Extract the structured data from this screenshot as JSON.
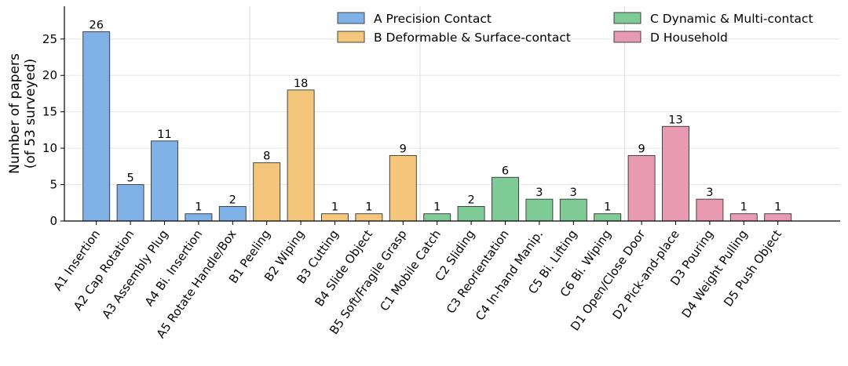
{
  "chart_data": {
    "type": "bar",
    "ylabel_lines": [
      "Number of papers",
      "(of 53 surveyed)"
    ],
    "ylim": [
      0,
      29.5
    ],
    "yticks": [
      0,
      5,
      10,
      15,
      20,
      25
    ],
    "grid": true,
    "legend_position": "top",
    "categories": [
      "A1 Insertion",
      "A2 Cap Rotation",
      "A3 Assembly Plug",
      "A4 Bi. Insertion",
      "A5 Rotate Handle/Box",
      "B1 Peeling",
      "B2 Wiping",
      "B3 Cutting",
      "B4 Slide Object",
      "B5 Soft/Fragile Grasp",
      "C1 Mobile Catch",
      "C2 Sliding",
      "C3 Reorientation",
      "C4 In-hand Manip.",
      "C5 Bi. Lifting",
      "C6 Bi. Wiping",
      "D1 Open/Close Door",
      "D2 Pick-and-place",
      "D3 Pouring",
      "D4 Weight Pulling",
      "D5 Push Object"
    ],
    "values": [
      26,
      5,
      11,
      1,
      2,
      8,
      18,
      1,
      1,
      9,
      1,
      2,
      6,
      3,
      3,
      1,
      9,
      13,
      3,
      1,
      1
    ],
    "groups": [
      "A",
      "A",
      "A",
      "A",
      "A",
      "B",
      "B",
      "B",
      "B",
      "B",
      "C",
      "C",
      "C",
      "C",
      "C",
      "C",
      "D",
      "D",
      "D",
      "D",
      "D"
    ],
    "series": [
      {
        "key": "A",
        "name": "A  Precision Contact",
        "color": "#80b1e6"
      },
      {
        "key": "B",
        "name": "B  Deformable & Surface-contact",
        "color": "#f4c67c"
      },
      {
        "key": "C",
        "name": "C  Dynamic & Multi-contact",
        "color": "#7ecb96"
      },
      {
        "key": "D",
        "name": "D  Household",
        "color": "#e89ab3"
      }
    ]
  }
}
